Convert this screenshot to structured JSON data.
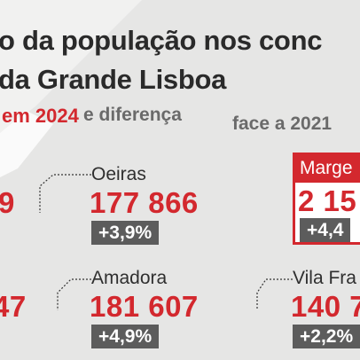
{
  "header": {
    "title_lines": [
      "o da população nos conc",
      "da Grande Lisboa"
    ],
    "subtitle": {
      "year": "em 2024",
      "middle": "e diferença",
      "end": "face a 2021"
    }
  },
  "left_cards": [
    {
      "population": "9"
    },
    {
      "population": "47"
    }
  ],
  "cards": [
    {
      "name": "Oeiras",
      "population": "177 866",
      "change": "+3,9%"
    },
    {
      "name": "Amadora",
      "population": "181 607",
      "change": "+4,9%"
    },
    {
      "name": "Marge",
      "population": "2 15",
      "change": "+4,4"
    },
    {
      "name": "Vila Fra",
      "population": "140 7",
      "change": "+2,2%"
    }
  ]
}
